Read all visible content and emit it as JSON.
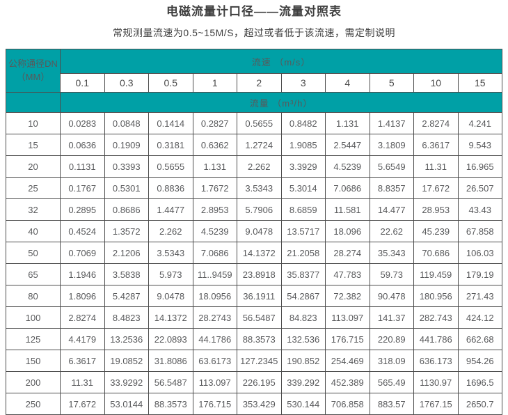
{
  "title": "电磁流量计口径——流量对照表",
  "subtitle": "常规测量流速为0.5~15M/S，超过或者低于该流速，需定制说明",
  "colors": {
    "header_teal": "#00a0a6",
    "border": "#4c4c4c",
    "text": "#58595b"
  },
  "table": {
    "corner_line1": "公称通径DN",
    "corner_line2": "（MM）",
    "velocity_header": "流速 （m/s）",
    "flow_header": "流量 （m³/h）",
    "velocities": [
      "0.1",
      "0.3",
      "0.5",
      "1",
      "2",
      "3",
      "4",
      "5",
      "10",
      "15"
    ],
    "rows": [
      {
        "dn": "10",
        "values": [
          "0.0283",
          "0.0848",
          "0.1414",
          "0.2827",
          "0.5655",
          "0.8482",
          "1.131",
          "1.4137",
          "2.8274",
          "4.241"
        ]
      },
      {
        "dn": "15",
        "values": [
          "0.0636",
          "0.1909",
          "0.3181",
          "0.6362",
          "1.2724",
          "1.9085",
          "2.5447",
          "3.1809",
          "6.3617",
          "9.543"
        ]
      },
      {
        "dn": "20",
        "values": [
          "0.1131",
          "0.3393",
          "0.5655",
          "1.131",
          "2.262",
          "3.3929",
          "4.5239",
          "5.6549",
          "11.31",
          "16.965"
        ]
      },
      {
        "dn": "25",
        "values": [
          "0.1767",
          "0.5301",
          "0.8836",
          "1.7672",
          "3.5343",
          "5.3014",
          "7.0686",
          "8.8357",
          "17.672",
          "26.507"
        ]
      },
      {
        "dn": "32",
        "values": [
          "0.2895",
          "0.8686",
          "1.4477",
          "2.8953",
          "5.7906",
          "8.6859",
          "11.581",
          "14.477",
          "28.953",
          "43.43"
        ]
      },
      {
        "dn": "40",
        "values": [
          "0.4524",
          "1.3572",
          "2.262",
          "4.5239",
          "9.0478",
          "13.5717",
          "18.096",
          "22.62",
          "45.239",
          "67.858"
        ]
      },
      {
        "dn": "50",
        "values": [
          "0.7069",
          "2.1206",
          "3.5343",
          "7.0686",
          "14.1372",
          "21.2058",
          "28.274",
          "35.343",
          "70.686",
          "106.03"
        ]
      },
      {
        "dn": "65",
        "values": [
          "1.1946",
          "3.5838",
          "5.973",
          "11..9459",
          "23.8918",
          "35.8377",
          "47.783",
          "59.73",
          "119.459",
          "179.19"
        ]
      },
      {
        "dn": "80",
        "values": [
          "1.8096",
          "5.4287",
          "9.0478",
          "18.0956",
          "36.1911",
          "54.2867",
          "72.382",
          "90.478",
          "180.956",
          "271.43"
        ]
      },
      {
        "dn": "100",
        "values": [
          "2.8274",
          "8.4823",
          "14.1372",
          "28.2743",
          "56.5487",
          "84.823",
          "113.097",
          "141.37",
          "282.743",
          "424.12"
        ]
      },
      {
        "dn": "125",
        "values": [
          "4.4179",
          "13.2536",
          "22.0893",
          "44.1786",
          "88.3573",
          "132.536",
          "176.715",
          "220.89",
          "441.786",
          "662.68"
        ]
      },
      {
        "dn": "150",
        "values": [
          "6.3617",
          "19.0852",
          "31.8086",
          "63.6173",
          "127.2345",
          "190.852",
          "254.469",
          "318.09",
          "636.173",
          "954.26"
        ]
      },
      {
        "dn": "200",
        "values": [
          "11.31",
          "33.9292",
          "56.5487",
          "113.097",
          "226.195",
          "339.292",
          "452.389",
          "565.49",
          "1130.97",
          "1696.5"
        ]
      },
      {
        "dn": "250",
        "values": [
          "17.672",
          "53.0144",
          "88.3573",
          "176.715",
          "353.429",
          "530.144",
          "706.858",
          "883.57",
          "1767.15",
          "2650.7"
        ]
      }
    ]
  }
}
